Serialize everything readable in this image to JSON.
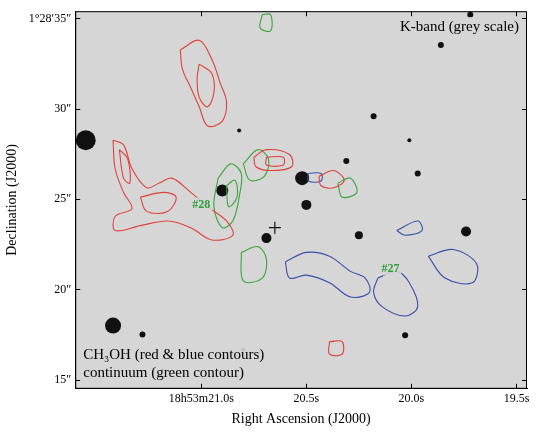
{
  "chart_data": {
    "type": "contour_map",
    "x_label": "Right Ascension (J2000)",
    "y_label": "Declination (J2000)",
    "xlim": [
      21.6,
      19.45
    ],
    "ylim": [
      14.5,
      35.4
    ],
    "xticks": [
      {
        "value": 21.0,
        "label": "18h53m21.0s"
      },
      {
        "value": 20.5,
        "label": "20.5s"
      },
      {
        "value": 20.0,
        "label": "20.0s"
      },
      {
        "value": 19.5,
        "label": "19.5s"
      }
    ],
    "yticks": [
      {
        "value": 35,
        "label": "1°28′35″"
      },
      {
        "value": 30,
        "label": "30″"
      },
      {
        "value": 25,
        "label": "25″"
      },
      {
        "value": 20,
        "label": "20″"
      },
      {
        "value": 15,
        "label": "15″"
      }
    ],
    "grid": false,
    "notes": [
      "K-band (grey scale)",
      "CH₃OH (red & blue contours)",
      "continuum (green contour)"
    ],
    "annotations": [
      {
        "text": "#28",
        "x": 21.0,
        "y": 24.7,
        "color": "#2e9e3a"
      },
      {
        "text": "#27",
        "x": 20.1,
        "y": 21.16,
        "color": "#2e9e3a"
      }
    ],
    "series": [
      {
        "type": "scatter",
        "marker": "circle",
        "color": "#111111",
        "x": [
          21.55,
          21.42,
          20.52,
          20.5,
          20.69,
          20.9,
          19.74,
          20.31,
          20.25,
          21.28,
          20.03,
          19.86,
          20.18,
          19.72,
          19.97,
          20.82,
          20.01,
          20.8
        ],
        "y": [
          28.26,
          18.0,
          26.16,
          24.68,
          22.84,
          25.47,
          23.21,
          27.11,
          23.0,
          17.5,
          17.47,
          33.53,
          29.58,
          35.2,
          26.42,
          28.79,
          28.26,
          16.68
        ],
        "sizes": [
          10,
          8,
          7,
          5,
          5,
          6,
          5,
          3,
          4,
          3,
          3,
          3,
          3,
          3,
          3,
          2,
          2,
          2
        ]
      },
      {
        "type": "scatter",
        "marker": "cross",
        "color": "#111111",
        "x": [
          20.65
        ],
        "y": [
          23.42
        ]
      },
      {
        "type": "line",
        "color": "#e0403a",
        "x": [
          21.1,
          21.01,
          20.95,
          20.91,
          20.88,
          20.9,
          20.97,
          21.01,
          21.05,
          21.09
        ],
        "y": [
          33.26,
          33.79,
          32.74,
          31.42,
          30.37,
          29.32,
          29.05,
          30.11,
          31.16,
          32.21
        ]
      },
      {
        "type": "line",
        "color": "#e0403a",
        "x": [
          21.01,
          20.95,
          20.94,
          20.97,
          21.01,
          21.02
        ],
        "y": [
          32.47,
          31.95,
          30.89,
          30.11,
          30.63,
          31.68
        ]
      },
      {
        "type": "line",
        "color": "#e0403a",
        "x": [
          21.42,
          21.37,
          21.33,
          21.26,
          21.2,
          21.14,
          21.05,
          20.97,
          20.88,
          20.85,
          20.95,
          21.05,
          21.16,
          21.29,
          21.41,
          21.41,
          21.33,
          21.37,
          21.41
        ],
        "y": [
          28.26,
          28.0,
          26.68,
          25.63,
          25.89,
          26.16,
          25.37,
          24.58,
          23.79,
          23.0,
          22.74,
          23.42,
          23.79,
          23.53,
          23.26,
          24.05,
          24.47,
          25.37,
          26.68
        ]
      },
      {
        "type": "line",
        "color": "#e0403a",
        "x": [
          21.29,
          21.18,
          21.12,
          21.16,
          21.26
        ],
        "y": [
          25.11,
          25.37,
          25.11,
          24.32,
          24.32
        ]
      },
      {
        "type": "line",
        "color": "#e0403a",
        "x": [
          21.39,
          21.35,
          21.34,
          21.37
        ],
        "y": [
          27.74,
          27.21,
          25.89,
          26.16
        ]
      },
      {
        "type": "line",
        "color": "#e0403a",
        "x": [
          20.75,
          20.69,
          20.58,
          20.57,
          20.67,
          20.74
        ],
        "y": [
          27.32,
          27.74,
          27.47,
          26.79,
          26.58,
          26.79
        ]
      },
      {
        "type": "line",
        "color": "#e0403a",
        "x": [
          20.69,
          20.61,
          20.61,
          20.69
        ],
        "y": [
          27.32,
          27.32,
          26.89,
          26.89
        ]
      },
      {
        "type": "line",
        "color": "#e0403a",
        "x": [
          20.44,
          20.37,
          20.32,
          20.37,
          20.43
        ],
        "y": [
          26.26,
          26.58,
          26.05,
          25.63,
          25.74
        ]
      },
      {
        "type": "line",
        "color": "#e0403a",
        "x": [
          20.39,
          20.33,
          20.33,
          20.39
        ],
        "y": [
          17.11,
          17.11,
          16.42,
          16.42
        ]
      },
      {
        "type": "line",
        "color": "#3a4fa8",
        "x": [
          20.6,
          20.5,
          20.39,
          20.29,
          20.22,
          20.2,
          20.29,
          20.39,
          20.5,
          20.58
        ],
        "y": [
          21.53,
          22.05,
          21.84,
          21.0,
          20.63,
          19.84,
          19.58,
          20.37,
          20.79,
          20.63
        ]
      },
      {
        "type": "line",
        "color": "#3a4fa8",
        "x": [
          20.16,
          20.07,
          20.01,
          19.97,
          20.03,
          20.14,
          20.18
        ],
        "y": [
          20.63,
          21.0,
          20.37,
          19.05,
          18.53,
          19.05,
          19.84
        ]
      },
      {
        "type": "line",
        "color": "#3a4fa8",
        "x": [
          19.92,
          19.8,
          19.69,
          19.71,
          19.84
        ],
        "y": [
          21.84,
          22.21,
          21.42,
          20.37,
          20.63
        ]
      },
      {
        "type": "line",
        "color": "#3a4fa8",
        "x": [
          20.49,
          20.43,
          20.43,
          20.49
        ],
        "y": [
          26.42,
          26.42,
          26.0,
          26.0
        ]
      },
      {
        "type": "line",
        "color": "#3a4fa8",
        "x": [
          20.07,
          19.97,
          19.95,
          20.03
        ],
        "y": [
          23.26,
          23.79,
          23.26,
          23.0
        ]
      },
      {
        "type": "line",
        "color": "#3aa53a",
        "x": [
          20.92,
          20.86,
          20.81,
          20.82,
          20.85,
          20.9,
          20.94
        ],
        "y": [
          26.16,
          26.95,
          26.42,
          25.11,
          23.79,
          23.42,
          24.58
        ]
      },
      {
        "type": "line",
        "color": "#3aa53a",
        "x": [
          20.88,
          20.84,
          20.83,
          20.87
        ],
        "y": [
          25.74,
          26.05,
          25.11,
          24.58
        ]
      },
      {
        "type": "line",
        "color": "#3aa53a",
        "x": [
          20.8,
          20.73,
          20.68,
          20.7,
          20.77
        ],
        "y": [
          26.95,
          27.74,
          27.21,
          26.26,
          26.05
        ]
      },
      {
        "type": "line",
        "color": "#3aa53a",
        "x": [
          20.81,
          20.73,
          20.69,
          20.71,
          20.8
        ],
        "y": [
          22.05,
          22.37,
          21.68,
          20.63,
          20.47
        ]
      },
      {
        "type": "line",
        "color": "#3aa53a",
        "x": [
          20.71,
          20.67,
          20.67,
          20.72
        ],
        "y": [
          35.21,
          35.21,
          34.32,
          34.47
        ]
      },
      {
        "type": "line",
        "color": "#3aa53a",
        "x": [
          20.35,
          20.29,
          20.26,
          20.33
        ],
        "y": [
          25.89,
          26.16,
          25.37,
          25.11
        ]
      }
    ]
  }
}
